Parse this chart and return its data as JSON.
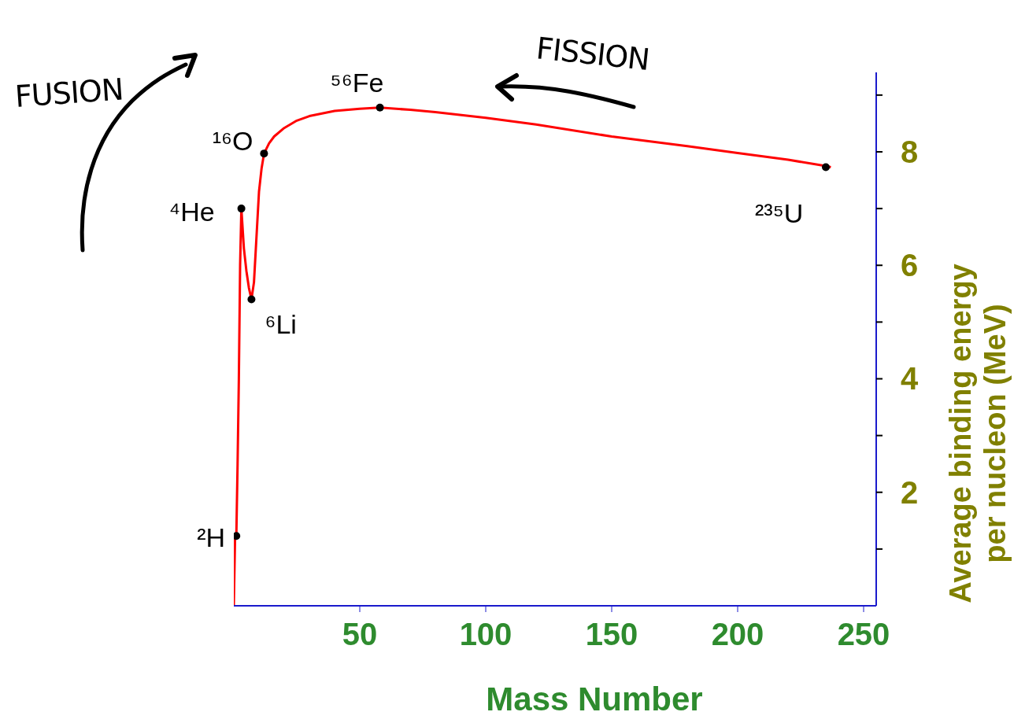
{
  "chart_data": {
    "type": "line",
    "xlabel": "Mass Number",
    "ylabel": "Average binding energy per nucleon (MeV)",
    "xlim": [
      0,
      255
    ],
    "xticks": [
      50,
      100,
      150,
      200,
      250
    ],
    "ylim": [
      0,
      9.4
    ],
    "yticks": [
      {
        "value": 1,
        "label": null
      },
      2,
      {
        "value": 3,
        "label": null
      },
      4,
      {
        "value": 5,
        "label": null
      },
      6,
      {
        "value": 7,
        "label": null
      },
      8,
      {
        "value": 9,
        "label": null
      }
    ],
    "series": [
      {
        "color": "#ff0000",
        "marker": "none",
        "line_style": "solid",
        "x": [
          0,
          0.5,
          1,
          1.5,
          2,
          2.5,
          3,
          4,
          5,
          6,
          7,
          8,
          9,
          10,
          11,
          12,
          14,
          16,
          20,
          25,
          30,
          40,
          50,
          58,
          70,
          80,
          100,
          120,
          150,
          180,
          200,
          220,
          235,
          237
        ],
        "values": [
          0,
          1.2,
          1.23,
          2.5,
          4.0,
          6.0,
          7.0,
          6.3,
          5.9,
          5.6,
          5.4,
          5.7,
          6.5,
          7.3,
          7.7,
          7.97,
          8.15,
          8.27,
          8.42,
          8.55,
          8.63,
          8.72,
          8.76,
          8.78,
          8.74,
          8.7,
          8.6,
          8.48,
          8.27,
          8.1,
          7.98,
          7.86,
          7.75,
          7.73
        ]
      },
      {
        "type": "scatter",
        "color": "#000000",
        "marker": "circle",
        "x": [
          1,
          3,
          7,
          12,
          58,
          235
        ],
        "values": [
          1.23,
          7.0,
          5.4,
          7.97,
          8.78,
          7.73
        ]
      }
    ],
    "annotations": [
      {
        "text": "²H",
        "x": 1,
        "y": 1.23
      },
      {
        "text": "⁴He",
        "x": 3,
        "y": 7.0
      },
      {
        "text": "⁶Li",
        "x": 7,
        "y": 5.4
      },
      {
        "text": "¹⁶O",
        "x": 12,
        "y": 7.97
      },
      {
        "text": "⁵⁶Fe",
        "x": 58,
        "y": 8.78
      },
      {
        "text": "²³⁵U",
        "x": 235,
        "y": 7.73
      },
      "FUSION",
      "FISSION"
    ]
  }
}
